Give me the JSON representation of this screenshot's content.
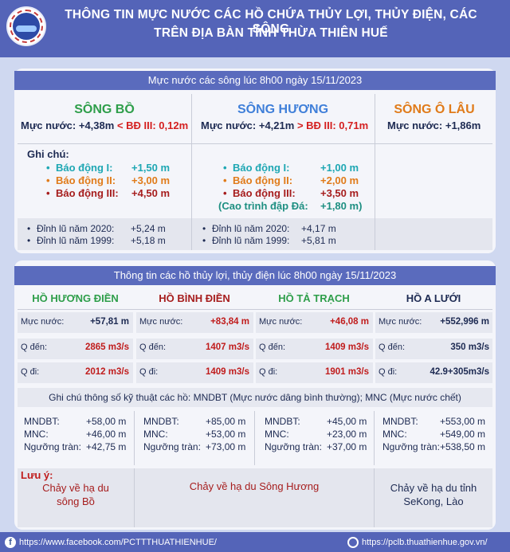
{
  "header": {
    "title_line1": "THÔNG TIN MỰC NƯỚC CÁC HỒ CHỨA THỦY LỢI, THỦY ĐIỆN, CÁC SÔNG",
    "title_line2": "TRÊN ĐỊA BÀN TỈNH THỪA THIÊN HUẾ"
  },
  "rivers": {
    "bar_title": "Mực nước các sông lúc 8h00 ngày 15/11/2023",
    "bo": {
      "name": "SÔNG BỒ",
      "level_prefix": "Mực nước: +4,38m",
      "level_cmp": "< BĐ III: 0,12m",
      "note_title": "Ghi chú:",
      "a1_label": "Báo động I:",
      "a1_value": "+1,50 m",
      "a2_label": "Báo động II:",
      "a2_value": "+3,00 m",
      "a3_label": "Báo động III:",
      "a3_value": "+4,50 m",
      "f1_label": "Đỉnh lũ năm 2020:",
      "f1_value": "+5,24 m",
      "f2_label": "Đỉnh lũ năm 1999:",
      "f2_value": "+5,18 m"
    },
    "huong": {
      "name": "SÔNG HƯƠNG",
      "level_prefix": "Mực nước: +4,21m",
      "level_cmp": "> BĐ III: 0,71m",
      "a1_label": "Báo động I:",
      "a1_value": "+1,00 m",
      "a2_label": "Báo động II:",
      "a2_value": "+2,00 m",
      "a3_label": "Báo động III:",
      "a3_value": "+3,50 m",
      "dam_label": "(Cao trình đập Đá:",
      "dam_value": "+1,80 m)",
      "f1_label": "Đỉnh lũ năm 2020:",
      "f1_value": "+4,17 m",
      "f2_label": "Đỉnh lũ năm 1999:",
      "f2_value": "+5,81 m"
    },
    "olau": {
      "name": "SÔNG Ô LÂU",
      "level_prefix": "Mực nước: +1,86m"
    }
  },
  "lakes": {
    "bar_title": "Thông tin các hồ thủy lợi, thủy điện lúc 8h00 ngày 15/11/2023",
    "level_label": "Mực nước:",
    "in_label": "Q đến:",
    "out_label": "Q đi:",
    "items": [
      {
        "name": "HỒ HƯƠNG ĐIỀN",
        "level": "+57,81 m",
        "in": "2865 m3/s",
        "out": "2012 m3/s",
        "mndbt_label": "MNDBT:",
        "mndbt": "+58,00 m",
        "mnc_label": "MNC:",
        "mnc": "+46,00 m",
        "spill_label": "Ngưỡng tràn:",
        "spill": "+42,75 m"
      },
      {
        "name": "HỒ BÌNH ĐIỀN",
        "level": "+83,84 m",
        "in": "1407 m3/s",
        "out": "1409 m3/s",
        "mndbt_label": "MNDBT:",
        "mndbt": "+85,00 m",
        "mnc_label": "MNC:",
        "mnc": "+53,00 m",
        "spill_label": "Ngưỡng tràn:",
        "spill": "+73,00 m"
      },
      {
        "name": "HỒ TẢ TRẠCH",
        "level": "+46,08 m",
        "in": "1409 m3/s",
        "out": "1901 m3/s",
        "mndbt_label": "MNDBT:",
        "mndbt": "+45,00 m",
        "mnc_label": "MNC:",
        "mnc": "+23,00 m",
        "spill_label": "Ngưỡng tràn:",
        "spill": "+37,00 m"
      },
      {
        "name": "HỒ A LƯỚI",
        "level": "+552,996 m",
        "in": "350 m3/s",
        "out": "42.9+305m3/s",
        "mndbt_label": "MNDBT:",
        "mndbt": "+553,00 m",
        "mnc_label": "MNC:",
        "mnc": "+549,00 m",
        "spill_label": "Ngưỡng tràn:",
        "spill": "+538,50 m"
      }
    ],
    "spec_note": "Ghi chú thông số kỹ thuật các hồ: MNDBT (Mực nước dâng bình thường); MNC (Mực nước chết)",
    "remark_title": "Lưu ý:",
    "flow1_line1": "Chảy về hạ du",
    "flow1_line2": "sông Bồ",
    "flow2": "Chảy về hạ du Sông Hương",
    "flow3_line1": "Chảy về hạ du tỉnh",
    "flow3_line2": "SeKong, Lào"
  },
  "footer": {
    "left": "https://www.facebook.com/PCTTTHUATHIENHUE/",
    "right": "https://pclb.thuathienhue.gov.vn/"
  },
  "colors": {
    "header": "#5464b8",
    "bar": "#5a6bbd",
    "bo": "#2e9e4a",
    "huong": "#3f7fd9",
    "olau": "#e07b1a",
    "alarm1": "#1ea7b3",
    "alarm2": "#e07b1a",
    "alarm3": "#a61d1d",
    "red": "#d41f1f"
  },
  "icons": [
    "logo-emblem-icon",
    "facebook-icon",
    "globe-icon"
  ]
}
